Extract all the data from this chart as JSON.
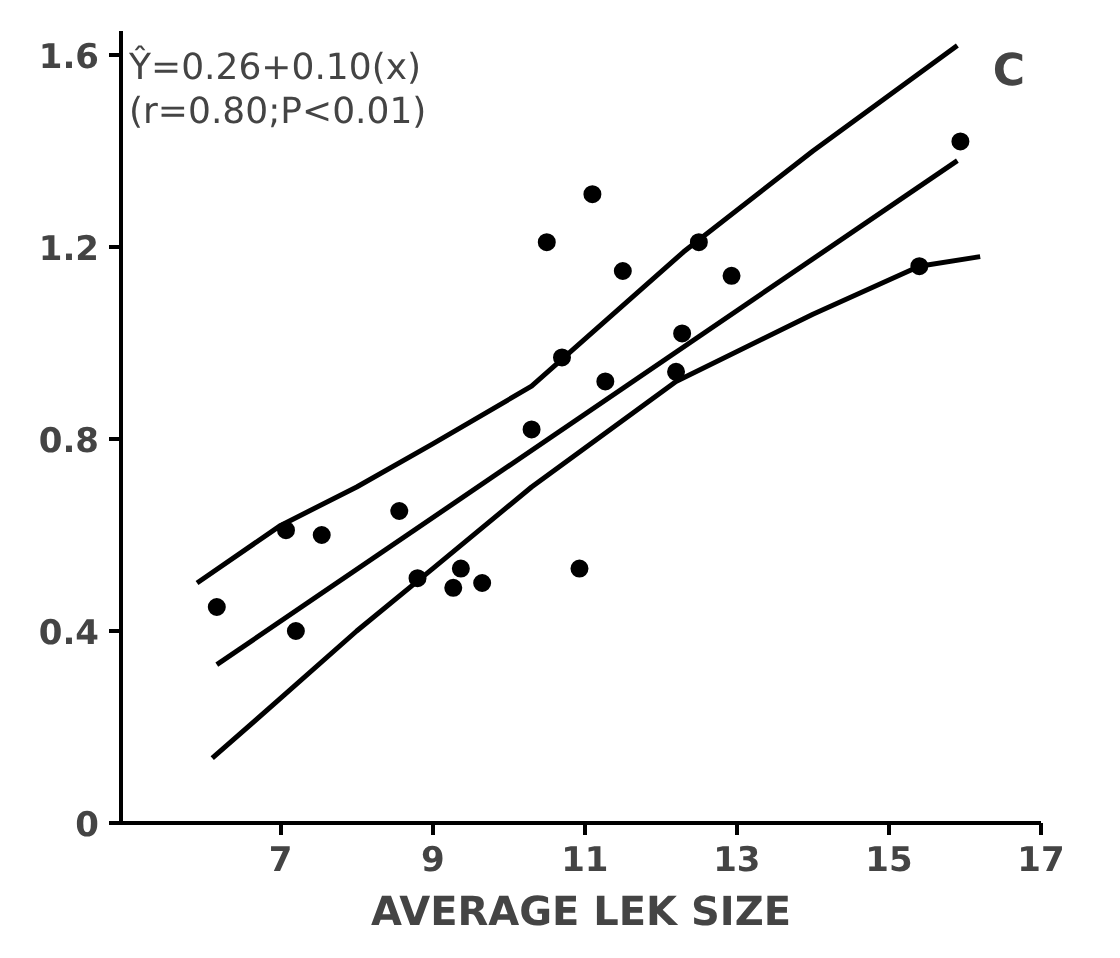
{
  "chart_data": {
    "type": "scatter",
    "xlabel": "AVERAGE LEK SIZE",
    "annotations": [
      "Ŷ=0.26+0.10(x)",
      "(r=0.80;P<0.01)",
      "C"
    ],
    "xlim": [
      4.9,
      17
    ],
    "ylim": [
      0,
      1.65
    ],
    "xticks": [
      7,
      9,
      11,
      13,
      15,
      17
    ],
    "yticks": [
      0,
      0.4,
      0.8,
      1.2,
      1.6
    ],
    "grid": false,
    "series": [
      {
        "marker": "circle",
        "color": "#000000",
        "x": [
          6.16,
          7.07,
          7.2,
          7.54,
          8.56,
          8.8,
          9.27,
          9.37,
          9.65,
          10.3,
          10.5,
          10.7,
          10.93,
          11.1,
          11.27,
          11.5,
          12.2,
          12.28,
          12.5,
          12.93,
          15.4,
          15.94
        ],
        "values": [
          0.45,
          0.61,
          0.4,
          0.6,
          0.65,
          0.51,
          0.49,
          0.53,
          0.5,
          0.82,
          1.21,
          0.97,
          0.53,
          1.31,
          0.92,
          1.15,
          0.94,
          1.02,
          1.21,
          1.14,
          1.16,
          1.42
        ]
      },
      {
        "type": "line",
        "color": "#000000",
        "x": [
          6.16,
          15.9
        ],
        "values": [
          0.33,
          1.38
        ]
      },
      {
        "type": "line",
        "color": "#000000",
        "x": [
          5.9,
          7,
          8,
          9,
          10.3,
          12.3,
          14,
          15.9
        ],
        "values": [
          0.5,
          0.62,
          0.7,
          0.79,
          0.91,
          1.19,
          1.4,
          1.62
        ]
      },
      {
        "type": "line",
        "color": "#000000",
        "x": [
          6.1,
          7,
          8,
          9,
          10.3,
          12.2,
          14,
          15.4,
          16.2
        ],
        "values": [
          0.135,
          0.26,
          0.4,
          0.53,
          0.7,
          0.92,
          1.06,
          1.16,
          1.18
        ]
      }
    ]
  }
}
